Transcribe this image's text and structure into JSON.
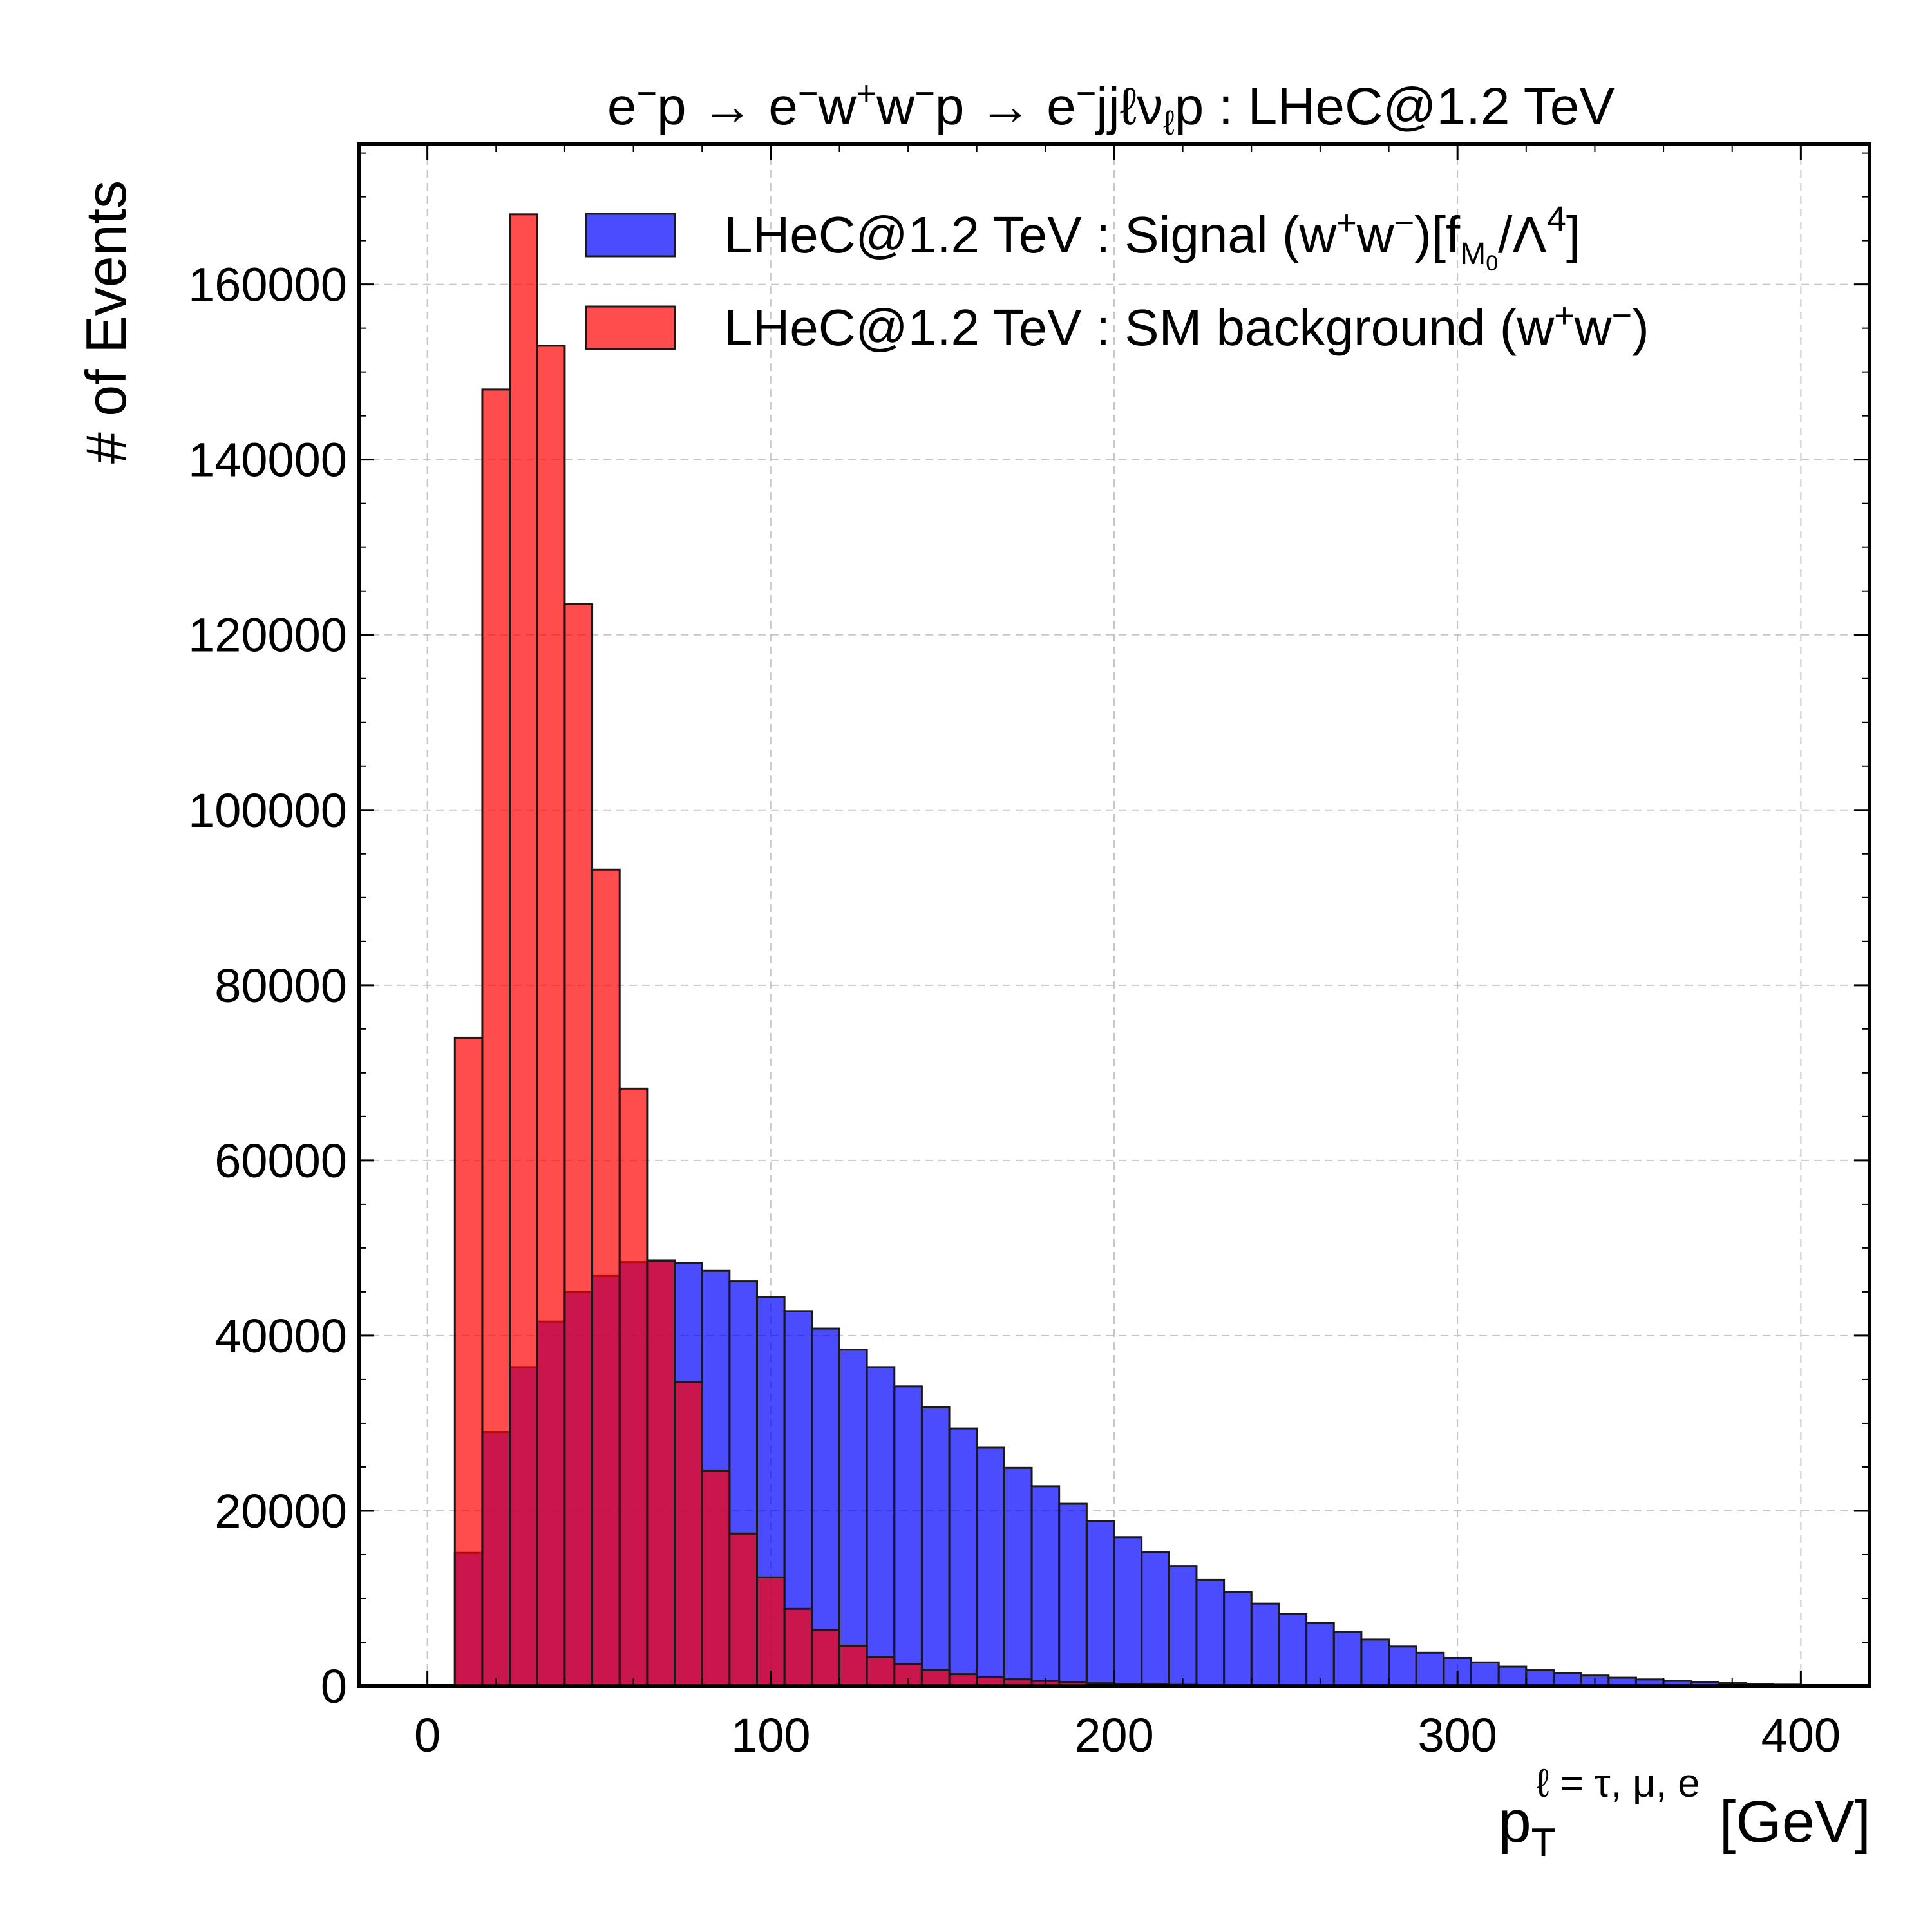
{
  "chart_data": {
    "type": "bar",
    "title": "e⁻p → e⁻w⁺w⁻p → e⁻jjℓνℓp : LHeC@1.2 TeV",
    "xlabel": "p_T^{ℓ = τ, μ, e} [GeV]",
    "ylabel": "# of Events",
    "xlim": [
      -20,
      420
    ],
    "ylim": [
      0,
      176000
    ],
    "grid": true,
    "legend_position": "top-right",
    "x_ticks": [
      0,
      100,
      200,
      300,
      400
    ],
    "y_ticks": [
      0,
      20000,
      40000,
      60000,
      80000,
      100000,
      120000,
      140000,
      160000
    ],
    "bin_edges": [
      8,
      16,
      24,
      32,
      40,
      48,
      56,
      64,
      72,
      80,
      88,
      96,
      104,
      112,
      120,
      128,
      136,
      144,
      152,
      160,
      168,
      176,
      184,
      192,
      200,
      208,
      216,
      224,
      232,
      240,
      248,
      256,
      264,
      272,
      280,
      288,
      296,
      304,
      312,
      320,
      328,
      336,
      344,
      352,
      360,
      368,
      376,
      384,
      392,
      400
    ],
    "series": [
      {
        "name": "LHeC@1.2 TeV : Signal (w⁺w⁻)[f_M0/Λ⁴]",
        "color": "#0000ff",
        "opacity": 0.7,
        "values": [
          15200,
          29000,
          36400,
          41600,
          45000,
          46800,
          48400,
          48600,
          48300,
          47400,
          46200,
          44400,
          42800,
          40800,
          38400,
          36400,
          34200,
          31800,
          29400,
          27200,
          24900,
          22800,
          20800,
          18800,
          17000,
          15300,
          13700,
          12100,
          10700,
          9400,
          8200,
          7200,
          6200,
          5300,
          4500,
          3800,
          3200,
          2700,
          2200,
          1800,
          1500,
          1200,
          950,
          750,
          580,
          450,
          330,
          240,
          160
        ]
      },
      {
        "name": "LHeC@1.2 TeV : SM background (w⁺w⁻)",
        "color": "#ff0000",
        "opacity": 0.7,
        "values": [
          74000,
          148000,
          168000,
          153000,
          123500,
          93200,
          68200,
          48500,
          34700,
          24600,
          17400,
          12400,
          8800,
          6400,
          4600,
          3300,
          2500,
          1800,
          1350,
          1000,
          760,
          570,
          430,
          320,
          240,
          180,
          140,
          100,
          75,
          55,
          40,
          30,
          22,
          16,
          12,
          9,
          7,
          5,
          4,
          3,
          2,
          2,
          1,
          1,
          1,
          1,
          0,
          0,
          0
        ]
      }
    ]
  }
}
